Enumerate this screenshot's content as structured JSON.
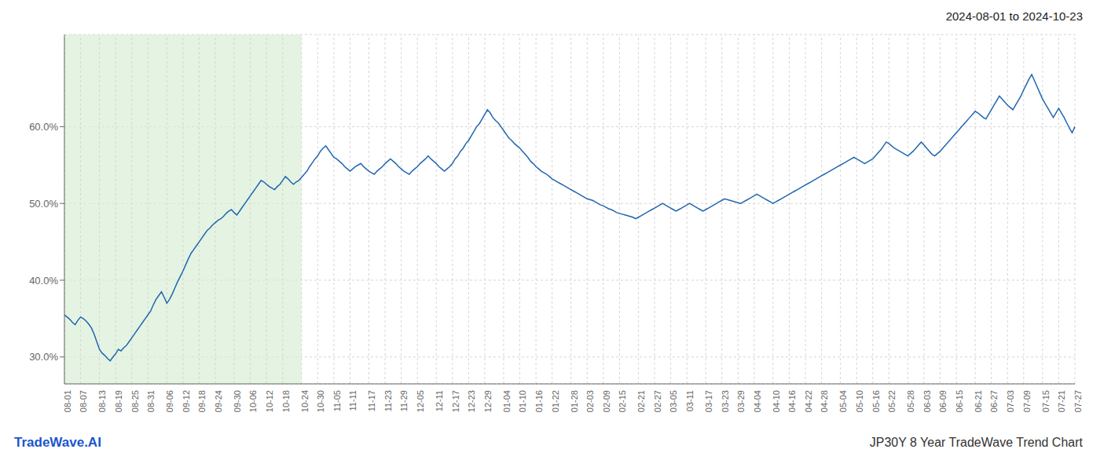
{
  "chart_data": {
    "type": "line",
    "title": "2024-08-01 to 2024-10-23",
    "subtitle": "JP30Y 8 Year TradeWave Trend Chart",
    "annotations": [
      {
        "text": "TradeWave.AI",
        "color": "#1a56cc"
      }
    ],
    "color": "#2166b0",
    "grid": true,
    "span": {
      "from": "08-01",
      "to": "10-24",
      "color": "#d6ecd2"
    },
    "ylim": [
      0.265,
      0.72
    ],
    "yticks": [
      {
        "value": 0.3,
        "label": "30.0%"
      },
      {
        "value": 0.4,
        "label": "40.0%"
      },
      {
        "value": 0.5,
        "label": "50.0%"
      },
      {
        "value": 0.6,
        "label": "60.0%"
      }
    ],
    "categories": [
      "08-01",
      null,
      null,
      null,
      null,
      null,
      "08-07",
      null,
      null,
      null,
      null,
      null,
      null,
      "08-13",
      null,
      null,
      null,
      null,
      null,
      "08-19",
      null,
      null,
      null,
      null,
      null,
      "08-25",
      null,
      null,
      null,
      null,
      null,
      "08-31",
      null,
      null,
      null,
      null,
      null,
      null,
      "09-06",
      null,
      null,
      null,
      null,
      null,
      "09-12",
      null,
      null,
      null,
      null,
      null,
      "09-18",
      null,
      null,
      null,
      null,
      null,
      "09-24",
      null,
      null,
      null,
      null,
      null,
      null,
      "09-30",
      null,
      null,
      null,
      null,
      null,
      "10-06",
      null,
      null,
      null,
      null,
      null,
      "10-12",
      null,
      null,
      null,
      null,
      null,
      "10-18",
      null,
      null,
      null,
      null,
      null,
      null,
      "10-24",
      null,
      null,
      null,
      null,
      null,
      "10-30",
      null,
      null,
      null,
      null,
      null,
      "11-05",
      null,
      null,
      null,
      null,
      null,
      "11-11",
      null,
      null,
      null,
      null,
      null,
      null,
      "11-17",
      null,
      null,
      null,
      null,
      null,
      "11-23",
      null,
      null,
      null,
      null,
      null,
      "11-29",
      null,
      null,
      null,
      null,
      null,
      "12-05",
      null,
      null,
      null,
      null,
      null,
      null,
      "12-11",
      null,
      null,
      null,
      null,
      null,
      "12-17",
      null,
      null,
      null,
      null,
      null,
      "12-23",
      null,
      null,
      null,
      null,
      null,
      "12-29",
      null,
      null,
      null,
      null,
      null,
      null,
      "01-04",
      null,
      null,
      null,
      null,
      null,
      "01-10",
      null,
      null,
      null,
      null,
      null,
      "01-16",
      null,
      null,
      null,
      null,
      null,
      "01-22",
      null,
      null,
      null,
      null,
      null,
      null,
      "01-28",
      null,
      null,
      null,
      null,
      null,
      "02-03",
      null,
      null,
      null,
      null,
      null,
      "02-09",
      null,
      null,
      null,
      null,
      null,
      "02-15",
      null,
      null,
      null,
      null,
      null,
      null,
      "02-21",
      null,
      null,
      null,
      null,
      null,
      "02-27",
      null,
      null,
      null,
      null,
      null,
      "03-05",
      null,
      null,
      null,
      null,
      null,
      "03-11",
      null,
      null,
      null,
      null,
      null,
      null,
      "03-17",
      null,
      null,
      null,
      null,
      null,
      "03-23",
      null,
      null,
      null,
      null,
      null,
      "03-29",
      null,
      null,
      null,
      null,
      null,
      "04-04",
      null,
      null,
      null,
      null,
      null,
      null,
      "04-10",
      null,
      null,
      null,
      null,
      null,
      "04-16",
      null,
      null,
      null,
      null,
      null,
      "04-22",
      null,
      null,
      null,
      null,
      null,
      "04-28",
      null,
      null,
      null,
      null,
      null,
      null,
      "05-04",
      null,
      null,
      null,
      null,
      null,
      "05-10",
      null,
      null,
      null,
      null,
      null,
      "05-16",
      null,
      null,
      null,
      null,
      null,
      "05-22",
      null,
      null,
      null,
      null,
      null,
      null,
      "05-28",
      null,
      null,
      null,
      null,
      null,
      "06-03",
      null,
      null,
      null,
      null,
      null,
      "06-09",
      null,
      null,
      null,
      null,
      null,
      "06-15",
      null,
      null,
      null,
      null,
      null,
      null,
      "06-21",
      null,
      null,
      null,
      null,
      null,
      "06-27",
      null,
      null,
      null,
      null,
      null,
      "07-03",
      null,
      null,
      null,
      null,
      null,
      "07-09",
      null,
      null,
      null,
      null,
      null,
      null,
      "07-15",
      null,
      null,
      null,
      null,
      null,
      "07-21",
      null,
      null,
      null,
      null,
      null,
      "07-27"
    ],
    "values": [
      0.355,
      0.352,
      0.349,
      0.345,
      0.342,
      0.348,
      0.352,
      0.35,
      0.347,
      0.343,
      0.338,
      0.33,
      0.32,
      0.31,
      0.305,
      0.302,
      0.298,
      0.295,
      0.3,
      0.304,
      0.31,
      0.308,
      0.312,
      0.315,
      0.32,
      0.325,
      0.33,
      0.335,
      0.34,
      0.345,
      0.35,
      0.355,
      0.36,
      0.368,
      0.375,
      0.38,
      0.385,
      0.378,
      0.37,
      0.375,
      0.382,
      0.39,
      0.398,
      0.405,
      0.412,
      0.42,
      0.428,
      0.435,
      0.44,
      0.445,
      0.45,
      0.455,
      0.46,
      0.465,
      0.468,
      0.472,
      0.475,
      0.478,
      0.48,
      0.483,
      0.487,
      0.49,
      0.492,
      0.488,
      0.485,
      0.49,
      0.495,
      0.5,
      0.505,
      0.51,
      0.515,
      0.52,
      0.525,
      0.53,
      0.528,
      0.525,
      0.522,
      0.52,
      0.518,
      0.522,
      0.525,
      0.53,
      0.535,
      0.532,
      0.528,
      0.525,
      0.528,
      0.53,
      0.534,
      0.538,
      0.542,
      0.548,
      0.553,
      0.558,
      0.562,
      0.568,
      0.572,
      0.575,
      0.57,
      0.565,
      0.56,
      0.558,
      0.555,
      0.552,
      0.548,
      0.545,
      0.542,
      0.545,
      0.548,
      0.55,
      0.552,
      0.548,
      0.545,
      0.542,
      0.54,
      0.538,
      0.542,
      0.545,
      0.548,
      0.552,
      0.555,
      0.558,
      0.555,
      0.552,
      0.548,
      0.545,
      0.542,
      0.54,
      0.538,
      0.542,
      0.545,
      0.548,
      0.552,
      0.555,
      0.558,
      0.562,
      0.558,
      0.555,
      0.552,
      0.548,
      0.545,
      0.542,
      0.545,
      0.548,
      0.552,
      0.558,
      0.562,
      0.568,
      0.572,
      0.578,
      0.582,
      0.588,
      0.594,
      0.6,
      0.604,
      0.61,
      0.616,
      0.622,
      0.618,
      0.612,
      0.608,
      0.605,
      0.6,
      0.595,
      0.59,
      0.585,
      0.582,
      0.578,
      0.575,
      0.572,
      0.568,
      0.564,
      0.56,
      0.555,
      0.552,
      0.548,
      0.545,
      0.542,
      0.54,
      0.538,
      0.535,
      0.532,
      0.53,
      0.528,
      0.526,
      0.524,
      0.522,
      0.52,
      0.518,
      0.516,
      0.514,
      0.512,
      0.51,
      0.508,
      0.506,
      0.505,
      0.504,
      0.502,
      0.5,
      0.498,
      0.497,
      0.495,
      0.493,
      0.492,
      0.49,
      0.488,
      0.487,
      0.486,
      0.485,
      0.484,
      0.483,
      0.482,
      0.48,
      0.482,
      0.484,
      0.486,
      0.488,
      0.49,
      0.492,
      0.494,
      0.496,
      0.498,
      0.5,
      0.498,
      0.496,
      0.494,
      0.492,
      0.49,
      0.492,
      0.494,
      0.496,
      0.498,
      0.5,
      0.498,
      0.496,
      0.494,
      0.492,
      0.49,
      0.492,
      0.494,
      0.496,
      0.498,
      0.5,
      0.502,
      0.504,
      0.506,
      0.505,
      0.504,
      0.503,
      0.502,
      0.501,
      0.5,
      0.502,
      0.504,
      0.506,
      0.508,
      0.51,
      0.512,
      0.51,
      0.508,
      0.506,
      0.504,
      0.502,
      0.5,
      0.502,
      0.504,
      0.506,
      0.508,
      0.51,
      0.512,
      0.514,
      0.516,
      0.518,
      0.52,
      0.522,
      0.524,
      0.526,
      0.528,
      0.53,
      0.532,
      0.534,
      0.536,
      0.538,
      0.54,
      0.542,
      0.544,
      0.546,
      0.548,
      0.55,
      0.552,
      0.554,
      0.556,
      0.558,
      0.56,
      0.558,
      0.556,
      0.554,
      0.552,
      0.554,
      0.556,
      0.558,
      0.562,
      0.566,
      0.57,
      0.575,
      0.58,
      0.578,
      0.575,
      0.572,
      0.57,
      0.568,
      0.566,
      0.564,
      0.562,
      0.565,
      0.568,
      0.572,
      0.576,
      0.58,
      0.576,
      0.572,
      0.568,
      0.564,
      0.562,
      0.565,
      0.568,
      0.572,
      0.576,
      0.58,
      0.584,
      0.588,
      0.592,
      0.596,
      0.6,
      0.604,
      0.608,
      0.612,
      0.616,
      0.62,
      0.618,
      0.615,
      0.612,
      0.61,
      0.616,
      0.622,
      0.628,
      0.634,
      0.64,
      0.636,
      0.632,
      0.628,
      0.625,
      0.622,
      0.628,
      0.634,
      0.64,
      0.648,
      0.655,
      0.662,
      0.668,
      0.66,
      0.652,
      0.644,
      0.636,
      0.63,
      0.624,
      0.618,
      0.612,
      0.618,
      0.624,
      0.618,
      0.612,
      0.605,
      0.598,
      0.592,
      0.6
    ]
  }
}
